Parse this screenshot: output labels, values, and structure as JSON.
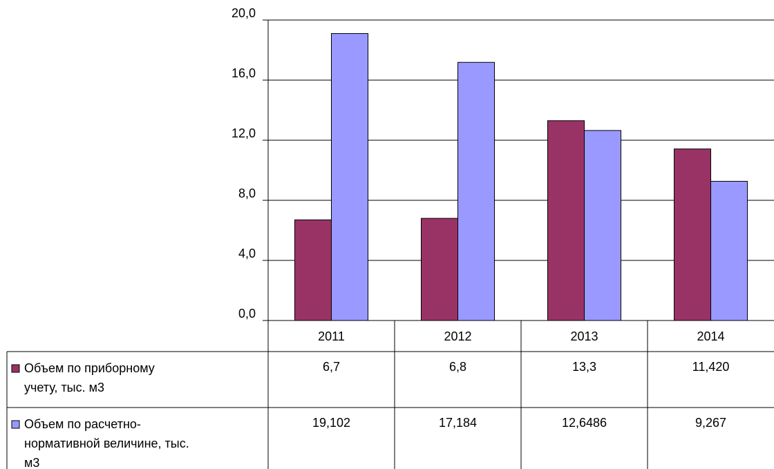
{
  "chart_data": {
    "type": "bar",
    "categories": [
      "2011",
      "2012",
      "2013",
      "2014"
    ],
    "series": [
      {
        "name": "Объем по приборному учету, тыс. м3",
        "name_lines": [
          "Объем по приборному",
          "учету, тыс. м3"
        ],
        "values": [
          6.7,
          6.8,
          13.3,
          11.42
        ],
        "table_labels": [
          "6,7",
          "6,8",
          "13,3",
          "11,420"
        ],
        "color": "#993366"
      },
      {
        "name": "Объем по расчетно-нормативной величине, тыс. м3",
        "name_lines": [
          "Объем по расчетно-",
          "нормативной величине, тыс.",
          "м3"
        ],
        "values": [
          19.102,
          17.184,
          12.6486,
          9.267
        ],
        "table_labels": [
          "19,102",
          "17,184",
          "12,6486",
          "9,267"
        ],
        "color": "#9999ff"
      }
    ],
    "ylim": [
      0,
      20
    ],
    "yticks": [
      "0,0",
      "4,0",
      "8,0",
      "12,0",
      "16,0",
      "20,0"
    ],
    "ytick_values": [
      0,
      4,
      8,
      12,
      16,
      20
    ],
    "grid": true,
    "legend": "data-table",
    "title": "",
    "xlabel": "",
    "ylabel": ""
  }
}
